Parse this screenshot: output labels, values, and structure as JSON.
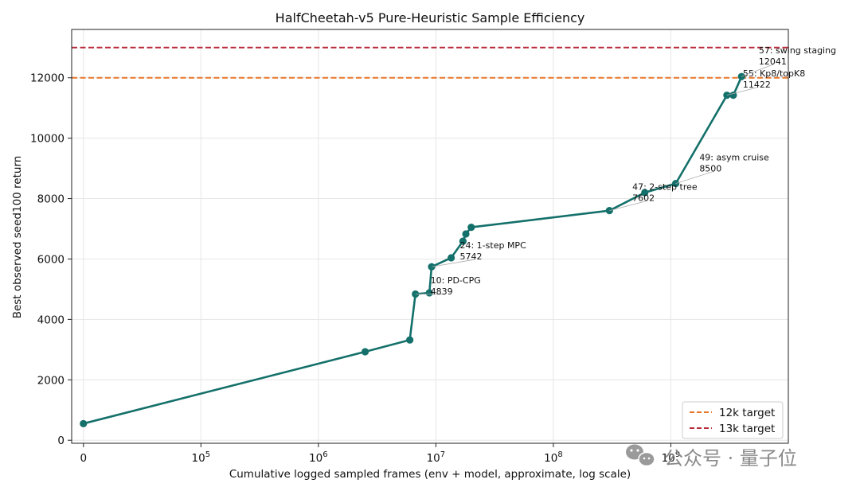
{
  "chart_data": {
    "type": "line",
    "title": "HalfCheetah-v5 Pure-Heuristic Sample Efficiency",
    "xlabel": "Cumulative logged sampled frames (env + model, approximate, log scale)",
    "ylabel": "Best observed seed100 return",
    "xscale": "symlog",
    "xlim": [
      -10000,
      10000000000
    ],
    "ylim": [
      -100,
      13600
    ],
    "grid": true,
    "x_ticks": [
      {
        "value": 0,
        "label": "0"
      },
      {
        "value": 100000,
        "label": "10",
        "exp": "5"
      },
      {
        "value": 1000000,
        "label": "10",
        "exp": "6"
      },
      {
        "value": 10000000,
        "label": "10",
        "exp": "7"
      },
      {
        "value": 100000000,
        "label": "10",
        "exp": "8"
      },
      {
        "value": 1000000000,
        "label": "10",
        "exp": "9"
      }
    ],
    "y_ticks": [
      0,
      2000,
      4000,
      6000,
      8000,
      10000,
      12000
    ],
    "series": [
      {
        "color": "#14706a",
        "x": [
          0,
          2500000,
          6000000,
          6700000,
          8800000,
          9200000,
          13500000,
          17000000,
          18000000,
          20000000,
          300000000,
          600000000,
          1100000000,
          3000000000,
          3400000000,
          4000000000
        ],
        "y": [
          550,
          2930,
          3320,
          4840,
          4880,
          5742,
          6040,
          6590,
          6830,
          7050,
          7602,
          8200,
          8500,
          11422,
          11422,
          12041
        ]
      }
    ],
    "hlines": [
      {
        "name": "12k target",
        "y": 12000,
        "color": "#e8762a",
        "style": "dashed"
      },
      {
        "name": "13k target",
        "y": 13000,
        "color": "#b82a3a",
        "style": "dashed"
      }
    ],
    "annotations": [
      {
        "line1": "10: PD-CPG",
        "line2": "4839",
        "x": 6700000,
        "y": 4840,
        "tx": 9000000,
        "ty": 5200
      },
      {
        "line1": "24: 1-step MPC",
        "line2": "5742",
        "x": 9200000,
        "y": 5742,
        "tx": 16000000,
        "ty": 6350
      },
      {
        "line1": "47: 2-step tree",
        "line2": "7602",
        "x": 300000000,
        "y": 7602,
        "tx": 470000000,
        "ty": 8290
      },
      {
        "line1": "49: asym cruise",
        "line2": "8500",
        "x": 1100000000,
        "y": 8500,
        "tx": 1750000000,
        "ty": 9270
      },
      {
        "line1": "55: Kp8/topK8",
        "line2": "11422",
        "x": 3000000000,
        "y": 11422,
        "tx": 4100000000,
        "ty": 12050
      },
      {
        "line1": "57: swing staging",
        "line2": "12041",
        "x": 4000000000,
        "y": 12041,
        "tx": 5600000000,
        "ty": 12810
      }
    ],
    "legend": {
      "position": "bottom-right"
    }
  },
  "watermark": {
    "text": "公众号 · 量子位",
    "icon": "wechat-icon"
  }
}
